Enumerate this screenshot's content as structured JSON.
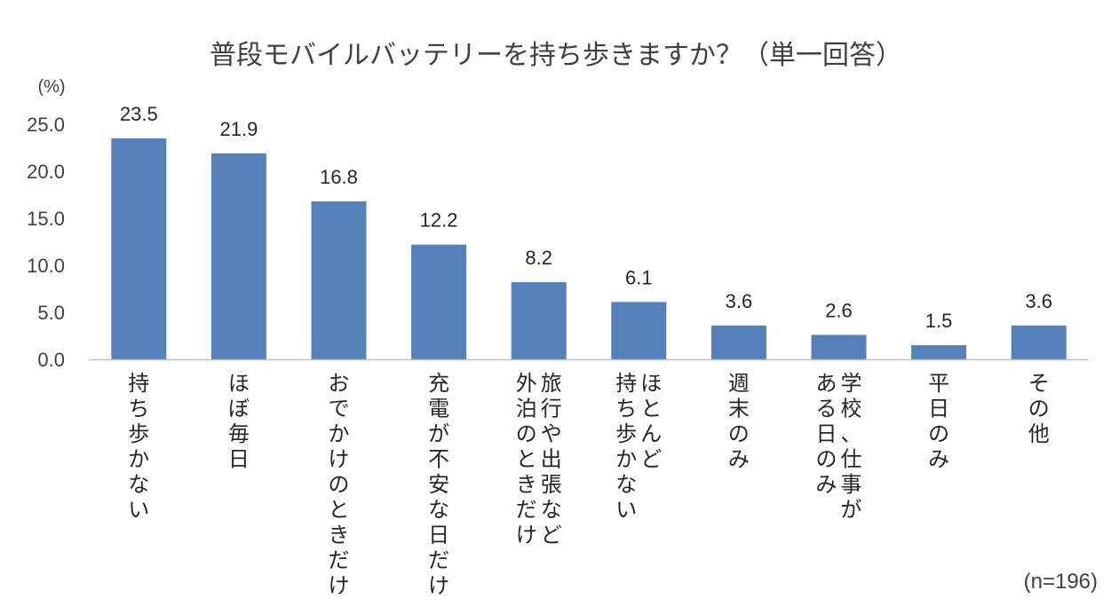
{
  "chart_data": {
    "type": "bar",
    "title": "普段モバイルバッテリーを持ち歩きますか？（単一回答）",
    "unit_label": "(%)",
    "sample_note": "(n=196)",
    "ylim": [
      0,
      25
    ],
    "yticks": [
      "0.0",
      "5.0",
      "10.0",
      "15.0",
      "20.0",
      "25.0"
    ],
    "categories": [
      [
        "持ち歩かない"
      ],
      [
        "ほぼ毎日"
      ],
      [
        "おでかけのときだけ"
      ],
      [
        "充電が不安な日だけ"
      ],
      [
        "旅行や出張など",
        "外泊のときだけ"
      ],
      [
        "ほとんど",
        "持ち歩かない"
      ],
      [
        "週末のみ"
      ],
      [
        "学校、仕事が",
        "ある日のみ"
      ],
      [
        "平日のみ"
      ],
      [
        "その他"
      ]
    ],
    "values": [
      23.5,
      21.9,
      16.8,
      12.2,
      8.2,
      6.1,
      3.6,
      2.6,
      1.5,
      3.6
    ],
    "value_labels": [
      "23.5",
      "21.9",
      "16.8",
      "12.2",
      "8.2",
      "6.1",
      "3.6",
      "2.6",
      "1.5",
      "3.6"
    ],
    "bar_color": "#5581BA",
    "axis_color": "#BFBFBF",
    "legend": "none",
    "grid": false
  }
}
